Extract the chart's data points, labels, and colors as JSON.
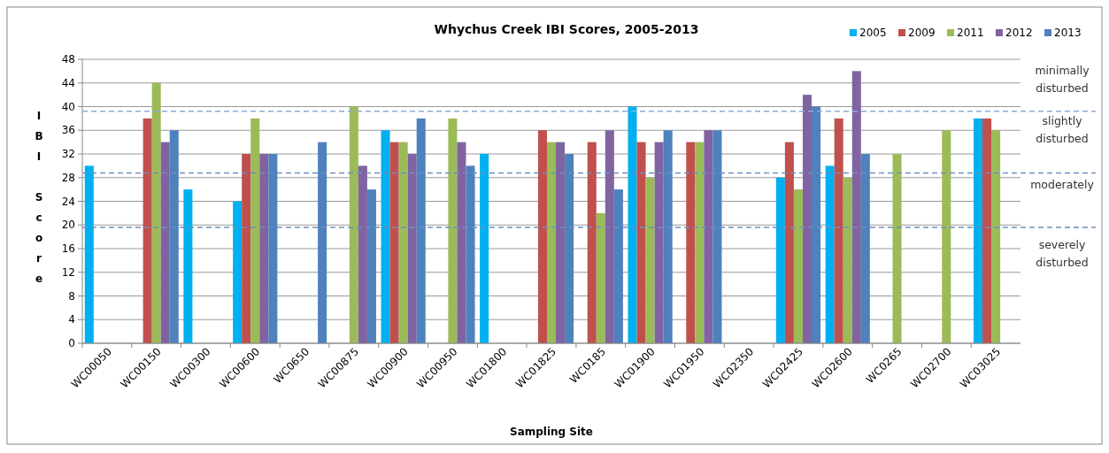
{
  "chart_data": {
    "type": "bar",
    "title": "Whychus Creek IBI Scores, 2005-2013",
    "xlabel": "Sampling Site",
    "ylabel": "IBI Score",
    "categories": [
      "WC00050",
      "WC00150",
      "WC00300",
      "WC00600",
      "WC0650",
      "WC00875",
      "WC00900",
      "WC00950",
      "WC01800",
      "WC01825",
      "WC0185",
      "WC01900",
      "WC01950",
      "WC02350",
      "WC02425",
      "WC02600",
      "WC0265",
      "WC02700",
      "WC03025"
    ],
    "series": [
      {
        "name": "2005",
        "color": "#00b0f0",
        "values": [
          30,
          null,
          26,
          24,
          null,
          null,
          36,
          null,
          32,
          null,
          null,
          40,
          null,
          null,
          28,
          30,
          null,
          null,
          38
        ]
      },
      {
        "name": "2009",
        "color": "#c0504d",
        "values": [
          null,
          38,
          null,
          32,
          null,
          null,
          34,
          null,
          null,
          36,
          34,
          34,
          34,
          null,
          34,
          38,
          null,
          null,
          38
        ]
      },
      {
        "name": "2011",
        "color": "#9bbb59",
        "values": [
          null,
          44,
          null,
          38,
          null,
          40,
          34,
          38,
          null,
          34,
          22,
          28,
          34,
          null,
          26,
          28,
          32,
          36,
          36
        ]
      },
      {
        "name": "2012",
        "color": "#8064a2",
        "values": [
          null,
          34,
          null,
          32,
          null,
          30,
          32,
          34,
          null,
          34,
          36,
          34,
          36,
          null,
          42,
          46,
          null,
          null,
          null
        ]
      },
      {
        "name": "2013",
        "color": "#4f81bd",
        "values": [
          null,
          36,
          null,
          32,
          34,
          26,
          38,
          30,
          null,
          32,
          26,
          36,
          36,
          null,
          40,
          32,
          null,
          null,
          null
        ]
      }
    ],
    "ylim": [
      0,
      48
    ],
    "yticks": [
      0,
      4,
      8,
      12,
      16,
      20,
      24,
      28,
      32,
      36,
      40,
      44,
      48
    ],
    "grid": "y",
    "legend": "top right",
    "ref_lines": [
      {
        "axis": "y",
        "value": 39.2,
        "color": "#8eaadb",
        "line_style": "dashed"
      },
      {
        "axis": "y",
        "value": 28.8,
        "color": "#6f8fbf",
        "line_style": "dashed"
      },
      {
        "axis": "y",
        "value": 19.6,
        "color": "#6f8fbf",
        "line_style": "dashed"
      }
    ],
    "annotations": [
      "minimally disturbed",
      "slightly disturbed",
      "moderately",
      "severely disturbed"
    ]
  }
}
